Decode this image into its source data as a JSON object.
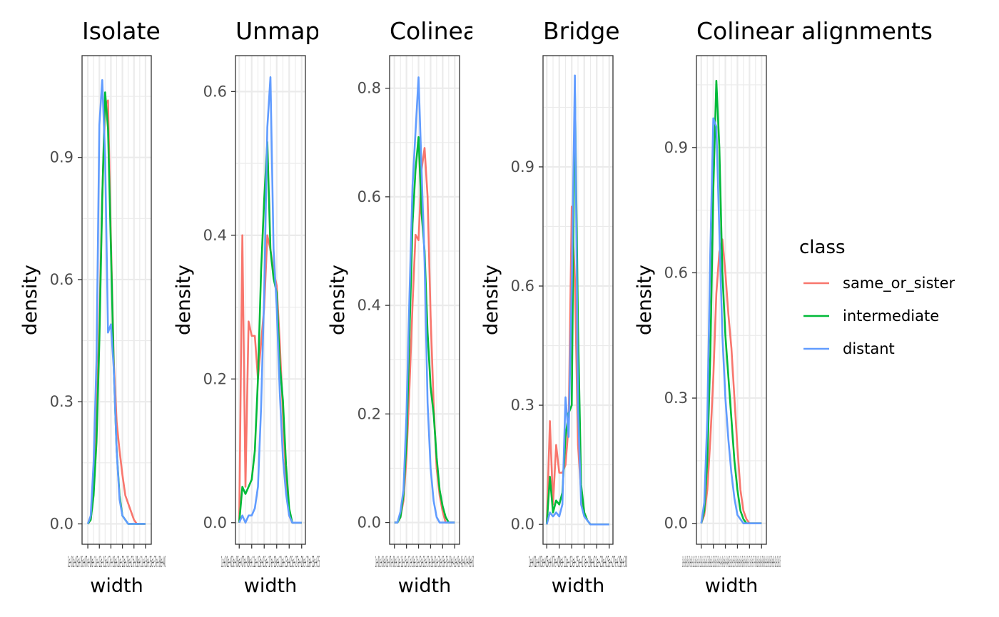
{
  "chart_data": [
    {
      "type": "line",
      "title": "Isolate",
      "xlabel": "width",
      "ylabel": "density",
      "x_scale": "log10",
      "x_tick_text": "1e+01e+03e+05e+07e+09e+11e+13e+15e+17e+19e+21e+23e+25e+27e+29e+31e+33e+35e+37e+39e+40",
      "y_ticks": [
        "0.0",
        "0.3",
        "0.6",
        "0.9"
      ],
      "xlim": [
        -0.5,
        5.5
      ],
      "ylim": [
        -0.05,
        1.15
      ],
      "x": [
        0,
        0.25,
        0.5,
        0.75,
        1,
        1.25,
        1.5,
        1.75,
        2,
        2.25,
        2.5,
        2.75,
        3,
        3.25,
        3.5,
        3.75,
        4,
        4.25,
        4.5,
        4.75,
        5
      ],
      "series": [
        {
          "name": "same_or_sister",
          "values": [
            0.0,
            0.01,
            0.08,
            0.25,
            0.5,
            0.8,
            1.03,
            1.04,
            0.7,
            0.4,
            0.25,
            0.18,
            0.12,
            0.07,
            0.05,
            0.03,
            0.01,
            0.0,
            0.0,
            0.0,
            0.0
          ]
        },
        {
          "name": "intermediate",
          "values": [
            0.0,
            0.01,
            0.07,
            0.2,
            0.45,
            0.8,
            1.06,
            0.97,
            0.68,
            0.38,
            0.18,
            0.07,
            0.02,
            0.01,
            0.0,
            0.0,
            0.0,
            0.0,
            0.0,
            0.0,
            0.0
          ]
        },
        {
          "name": "distant",
          "values": [
            0.0,
            0.02,
            0.15,
            0.4,
            0.98,
            1.09,
            0.9,
            0.47,
            0.49,
            0.38,
            0.18,
            0.06,
            0.02,
            0.01,
            0.0,
            0.0,
            0.0,
            0.0,
            0.0,
            0.0,
            0.0
          ]
        }
      ]
    },
    {
      "type": "line",
      "title": "Unmap",
      "xlabel": "width",
      "ylabel": "density",
      "x_scale": "log10",
      "x_tick_text": "1e+01e+03e+05e+07e+09e+11e+13e+15e+17e+19e+21e+23e+25e+27e+29e+31e+33e+35",
      "y_ticks": [
        "0.0",
        "0.2",
        "0.4",
        "0.6"
      ],
      "xlim": [
        -0.3,
        5.3
      ],
      "ylim": [
        -0.03,
        0.65
      ],
      "x": [
        0,
        0.25,
        0.5,
        0.75,
        1,
        1.25,
        1.5,
        1.75,
        2,
        2.25,
        2.5,
        2.75,
        3,
        3.25,
        3.5,
        3.75,
        4,
        4.25,
        4.5,
        4.75,
        5
      ],
      "series": [
        {
          "name": "same_or_sister",
          "values": [
            0.0,
            0.4,
            0.05,
            0.28,
            0.26,
            0.26,
            0.2,
            0.25,
            0.3,
            0.4,
            0.38,
            0.35,
            0.33,
            0.25,
            0.15,
            0.06,
            0.01,
            0.0,
            0.0,
            0.0,
            0.0
          ]
        },
        {
          "name": "intermediate",
          "values": [
            0.0,
            0.05,
            0.04,
            0.05,
            0.06,
            0.1,
            0.2,
            0.35,
            0.45,
            0.53,
            0.38,
            0.34,
            0.32,
            0.22,
            0.17,
            0.08,
            0.02,
            0.0,
            0.0,
            0.0,
            0.0
          ]
        },
        {
          "name": "distant",
          "values": [
            0.0,
            0.01,
            0.0,
            0.01,
            0.01,
            0.02,
            0.05,
            0.16,
            0.32,
            0.55,
            0.62,
            0.38,
            0.3,
            0.18,
            0.09,
            0.04,
            0.01,
            0.0,
            0.0,
            0.0,
            0.0
          ]
        }
      ]
    },
    {
      "type": "line",
      "title": "Colinea",
      "xlabel": "width",
      "ylabel": "density",
      "x_scale": "log10",
      "x_tick_text": "1e+01e+03e+05e+07e+09e+11e+13e+15e+17e+19e+21e+23e+25e+27e+29e+31e+33e+35e+37e+39e+41e+43e+45e+47e+49e+50",
      "y_ticks": [
        "0.0",
        "0.2",
        "0.4",
        "0.6",
        "0.8"
      ],
      "xlim": [
        -0.4,
        5.4
      ],
      "ylim": [
        -0.04,
        0.86
      ],
      "x": [
        0,
        0.25,
        0.5,
        0.75,
        1,
        1.25,
        1.5,
        1.75,
        2,
        2.25,
        2.5,
        2.75,
        3,
        3.25,
        3.5,
        3.75,
        4,
        4.25,
        4.5,
        4.75,
        5
      ],
      "series": [
        {
          "name": "same_or_sister",
          "values": [
            0.0,
            0.0,
            0.01,
            0.04,
            0.12,
            0.25,
            0.4,
            0.53,
            0.52,
            0.65,
            0.69,
            0.6,
            0.38,
            0.22,
            0.1,
            0.05,
            0.02,
            0.0,
            0.0,
            0.0,
            0.0
          ]
        },
        {
          "name": "intermediate",
          "values": [
            0.0,
            0.0,
            0.01,
            0.05,
            0.15,
            0.35,
            0.55,
            0.65,
            0.71,
            0.57,
            0.5,
            0.35,
            0.25,
            0.2,
            0.12,
            0.06,
            0.03,
            0.01,
            0.0,
            0.0,
            0.0
          ]
        },
        {
          "name": "distant",
          "values": [
            0.0,
            0.0,
            0.02,
            0.06,
            0.2,
            0.42,
            0.62,
            0.72,
            0.82,
            0.65,
            0.48,
            0.22,
            0.1,
            0.04,
            0.01,
            0.0,
            0.0,
            0.0,
            0.0,
            0.0,
            0.0
          ]
        }
      ]
    },
    {
      "type": "line",
      "title": "Bridge",
      "xlabel": "width",
      "ylabel": "density",
      "x_scale": "log10",
      "x_tick_text": "1e+01e+03e+05e+07e+09e+11e+13e+15e+17e+19e+21e+23e+25e+27e+29e+30",
      "y_ticks": [
        "0.0",
        "0.3",
        "0.6",
        "0.9"
      ],
      "xlim": [
        -0.3,
        5.3
      ],
      "ylim": [
        -0.05,
        1.18
      ],
      "x": [
        0,
        0.25,
        0.5,
        0.75,
        1,
        1.25,
        1.5,
        1.75,
        2,
        2.25,
        2.5,
        2.75,
        3,
        3.25,
        3.5,
        3.75,
        4,
        4.25,
        4.5,
        4.75,
        5
      ],
      "series": [
        {
          "name": "same_or_sister",
          "values": [
            0.0,
            0.26,
            0.05,
            0.2,
            0.13,
            0.13,
            0.15,
            0.25,
            0.8,
            0.62,
            0.2,
            0.08,
            0.03,
            0.01,
            0.0,
            0.0,
            0.0,
            0.0,
            0.0,
            0.0,
            0.0
          ]
        },
        {
          "name": "intermediate",
          "values": [
            0.0,
            0.12,
            0.03,
            0.06,
            0.05,
            0.08,
            0.22,
            0.28,
            0.3,
            1.1,
            0.5,
            0.1,
            0.03,
            0.01,
            0.0,
            0.0,
            0.0,
            0.0,
            0.0,
            0.0,
            0.0
          ]
        },
        {
          "name": "distant",
          "values": [
            0.0,
            0.03,
            0.02,
            0.03,
            0.02,
            0.05,
            0.32,
            0.22,
            0.6,
            1.13,
            0.3,
            0.05,
            0.02,
            0.01,
            0.0,
            0.0,
            0.0,
            0.0,
            0.0,
            0.0,
            0.0
          ]
        }
      ]
    },
    {
      "type": "line",
      "title": "Colinear alignments",
      "xlabel": "width",
      "ylabel": "density",
      "x_scale": "log10",
      "x_tick_text": "1e+01e+03e+05e+07e+09e+11e+13e+15e+17e+19e+21e+23e+25e+27e+29e+31e+33e+35e+37e+39e+41e+43e+45e+47e+49e+51e+53e+55e+57e+59e+61e+63e+65e+67e+69e+71e+73e+75e+77e+79e+81e+83e+85e+87e+89e+91e+93e+95e+97e+99e+101e+103e+105",
      "y_ticks": [
        "0.0",
        "0.3",
        "0.6",
        "0.9"
      ],
      "xlim": [
        -0.4,
        5.4
      ],
      "ylim": [
        -0.05,
        1.12
      ],
      "x": [
        0,
        0.25,
        0.5,
        0.75,
        1,
        1.25,
        1.5,
        1.75,
        2,
        2.25,
        2.5,
        2.75,
        3,
        3.25,
        3.5,
        3.75,
        4,
        4.25,
        4.5,
        4.75,
        5
      ],
      "series": [
        {
          "name": "same_or_sister",
          "values": [
            0.0,
            0.02,
            0.08,
            0.2,
            0.35,
            0.55,
            0.65,
            0.68,
            0.6,
            0.5,
            0.42,
            0.3,
            0.18,
            0.08,
            0.03,
            0.01,
            0.0,
            0.0,
            0.0,
            0.0,
            0.0
          ]
        },
        {
          "name": "intermediate",
          "values": [
            0.0,
            0.03,
            0.15,
            0.4,
            0.8,
            1.06,
            0.9,
            0.6,
            0.45,
            0.35,
            0.25,
            0.15,
            0.08,
            0.03,
            0.01,
            0.0,
            0.0,
            0.0,
            0.0,
            0.0,
            0.0
          ]
        },
        {
          "name": "distant",
          "values": [
            0.0,
            0.05,
            0.25,
            0.65,
            0.97,
            0.95,
            0.7,
            0.45,
            0.3,
            0.2,
            0.12,
            0.06,
            0.02,
            0.01,
            0.0,
            0.0,
            0.0,
            0.0,
            0.0,
            0.0,
            0.0
          ]
        }
      ]
    }
  ],
  "legend": {
    "title": "class",
    "placement": "right",
    "items": [
      {
        "label": "same_or_sister",
        "color": "#F8766D"
      },
      {
        "label": "intermediate",
        "color": "#00BA38"
      },
      {
        "label": "distant",
        "color": "#619CFF"
      }
    ]
  }
}
